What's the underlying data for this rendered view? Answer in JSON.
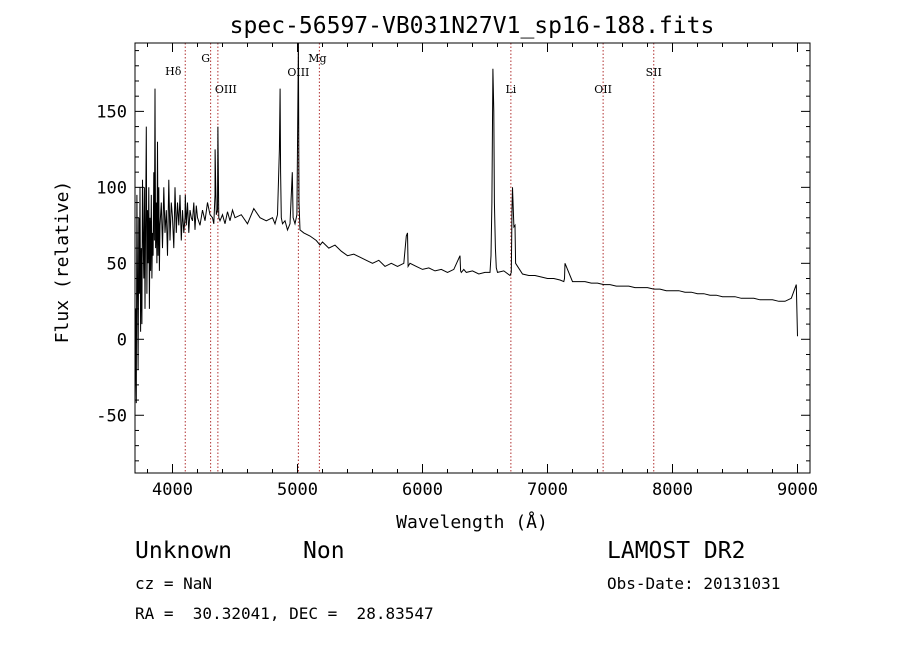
{
  "chart_data": {
    "type": "line",
    "title": "spec-56597-VB031N27V1_sp16-188.fits",
    "xlabel": "Wavelength (Å)",
    "ylabel": "Flux (relative)",
    "xlim": [
      3700,
      9100
    ],
    "ylim": [
      -88,
      195
    ],
    "xticks": [
      4000,
      5000,
      6000,
      7000,
      8000,
      9000
    ],
    "yticks": [
      -50,
      0,
      50,
      100,
      150
    ],
    "grid": false,
    "series": [
      {
        "x": [
          3700,
          3705,
          3710,
          3715,
          3720,
          3725,
          3730,
          3735,
          3740,
          3745,
          3750,
          3755,
          3760,
          3765,
          3770,
          3775,
          3780,
          3785,
          3790,
          3795,
          3800,
          3805,
          3810,
          3815,
          3820,
          3825,
          3830,
          3835,
          3840,
          3845,
          3850,
          3855,
          3860,
          3865,
          3870,
          3875,
          3880,
          3885,
          3890,
          3895,
          3900,
          3910,
          3920,
          3930,
          3940,
          3950,
          3960,
          3970,
          3980,
          3990,
          4000,
          4010,
          4020,
          4030,
          4040,
          4050,
          4060,
          4070,
          4080,
          4090,
          4100,
          4102,
          4110,
          4120,
          4130,
          4140,
          4150,
          4160,
          4170,
          4180,
          4190,
          4200,
          4220,
          4240,
          4260,
          4280,
          4300,
          4320,
          4330,
          4340,
          4341,
          4345,
          4350,
          4360,
          4363,
          4370,
          4380,
          4400,
          4420,
          4440,
          4460,
          4480,
          4500,
          4550,
          4600,
          4650,
          4700,
          4750,
          4800,
          4820,
          4840,
          4855,
          4861,
          4865,
          4870,
          4880,
          4900,
          4920,
          4940,
          4958,
          4965,
          4980,
          4995,
          5007,
          5012,
          5020,
          5050,
          5100,
          5150,
          5180,
          5200,
          5250,
          5300,
          5350,
          5400,
          5450,
          5500,
          5550,
          5600,
          5650,
          5700,
          5750,
          5800,
          5850,
          5870,
          5880,
          5885,
          5900,
          5950,
          6000,
          6050,
          6100,
          6150,
          6200,
          6250,
          6300,
          6305,
          6310,
          6330,
          6350,
          6400,
          6450,
          6500,
          6540,
          6548,
          6555,
          6563,
          6570,
          6575,
          6583,
          6590,
          6600,
          6650,
          6700,
          6710,
          6716,
          6720,
          6731,
          6740,
          6745,
          6800,
          6850,
          6900,
          6950,
          7000,
          7050,
          7100,
          7130,
          7136,
          7140,
          7200,
          7250,
          7300,
          7350,
          7400,
          7450,
          7500,
          7550,
          7600,
          7650,
          7700,
          7750,
          7800,
          7850,
          7900,
          7950,
          8000,
          8050,
          8100,
          8150,
          8200,
          8250,
          8300,
          8350,
          8400,
          8450,
          8500,
          8550,
          8600,
          8650,
          8700,
          8750,
          8800,
          8850,
          8900,
          8950,
          8990,
          9000
        ],
        "y": [
          -40,
          20,
          -42,
          95,
          40,
          -20,
          80,
          30,
          100,
          5,
          60,
          10,
          105,
          70,
          40,
          100,
          20,
          75,
          140,
          30,
          85,
          50,
          100,
          20,
          80,
          45,
          95,
          40,
          70,
          55,
          110,
          65,
          165,
          60,
          90,
          50,
          130,
          55,
          100,
          45,
          75,
          90,
          60,
          100,
          70,
          85,
          55,
          105,
          65,
          90,
          80,
          60,
          100,
          70,
          90,
          75,
          95,
          65,
          85,
          70,
          80,
          95,
          75,
          90,
          70,
          85,
          80,
          78,
          90,
          72,
          88,
          80,
          75,
          85,
          78,
          90,
          82,
          80,
          76,
          95,
          125,
          105,
          82,
          85,
          140,
          80,
          78,
          82,
          76,
          84,
          78,
          85,
          80,
          82,
          76,
          86,
          80,
          78,
          80,
          76,
          82,
          125,
          165,
          110,
          80,
          76,
          78,
          72,
          76,
          110,
          80,
          76,
          82,
          195,
          90,
          72,
          70,
          68,
          65,
          62,
          64,
          60,
          62,
          58,
          55,
          56,
          54,
          52,
          50,
          52,
          48,
          50,
          48,
          50,
          68,
          70,
          48,
          50,
          48,
          46,
          47,
          45,
          46,
          44,
          46,
          55,
          45,
          44,
          46,
          44,
          45,
          43,
          44,
          44,
          55,
          90,
          178,
          150,
          90,
          60,
          47,
          44,
          45,
          42,
          44,
          85,
          100,
          74,
          75,
          50,
          43,
          42,
          42,
          41,
          40,
          40,
          39,
          38,
          40,
          50,
          38,
          38,
          38,
          37,
          37,
          36,
          36,
          35,
          35,
          35,
          34,
          34,
          34,
          33,
          33,
          32,
          32,
          32,
          31,
          31,
          30,
          30,
          29,
          29,
          28,
          28,
          28,
          27,
          27,
          27,
          26,
          26,
          26,
          25,
          25,
          27,
          36,
          2
        ]
      }
    ],
    "lines": [
      {
        "name": "Hδ",
        "x": 4102
      },
      {
        "name": "G",
        "x": 4305
      },
      {
        "name": "OIII",
        "x": 4363
      },
      {
        "name": "OIII",
        "x": 5007
      },
      {
        "name": "Mg",
        "x": 5175
      },
      {
        "name": "Li",
        "x": 6707
      },
      {
        "name": "OII",
        "x": 7445
      },
      {
        "name": "SII",
        "x": 7850
      }
    ]
  },
  "info": {
    "object_class": "Unknown",
    "object_subclass": "Non",
    "survey": "LAMOST DR2",
    "redshift": "cz = NaN",
    "obs_date": "Obs-Date: 20131031",
    "coords": "RA =  30.32041, DEC =  28.83547"
  }
}
